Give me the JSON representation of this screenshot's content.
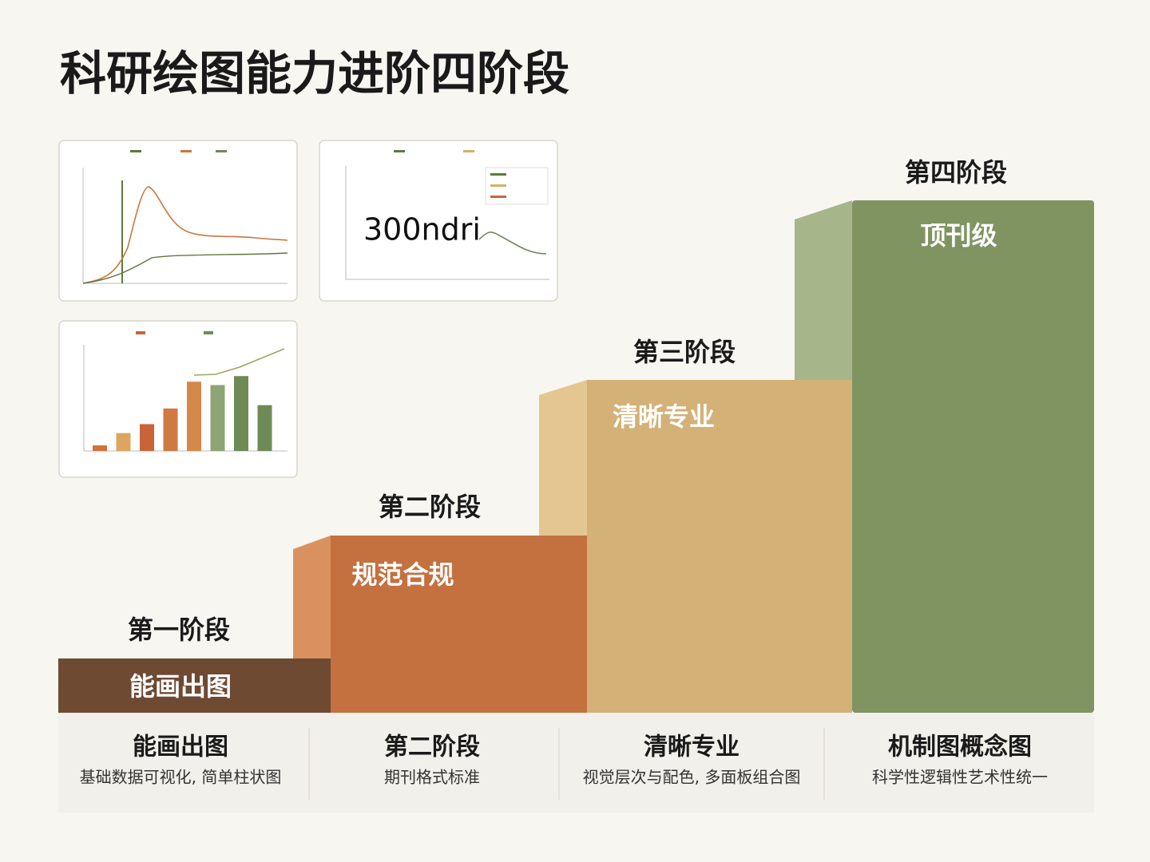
{
  "title": "科研绘图能力进阶四阶段",
  "stages": [
    {
      "label": "第一阶段",
      "inner": "能画出图",
      "color": "#6e4a33"
    },
    {
      "label": "第二阶段",
      "inner": "规范合规",
      "color": "#c4703f",
      "side": "#d9925f"
    },
    {
      "label": "第三阶段",
      "inner": "清晰专业",
      "color": "#d3b177",
      "side": "#e4c690"
    },
    {
      "label": "第四阶段",
      "inner": "顶刊级",
      "color": "#809462",
      "side": "#a6b58a"
    }
  ],
  "columns": [
    {
      "title": "能画出图",
      "desc": "基础数据可视化, 简单柱状图"
    },
    {
      "title": "第二阶段",
      "desc": "期刊格式标准"
    },
    {
      "title": "清晰专业",
      "desc": "视觉层次与配色, 多面板组合图"
    },
    {
      "title": "机制图概念图",
      "desc": "科学性逻辑性艺术性统一"
    }
  ],
  "thumbnail_text": "300ndri",
  "thumbnail_bars": {
    "ylim": [
      0,
      95
    ],
    "values": [
      5,
      16,
      24,
      38,
      62,
      59,
      67,
      41
    ],
    "colors": [
      "#d0743c",
      "#dca65f",
      "#c9643a",
      "#cf7a42",
      "#d4884a",
      "#8fa474",
      "#6f8b55",
      "#6f8b55"
    ]
  }
}
